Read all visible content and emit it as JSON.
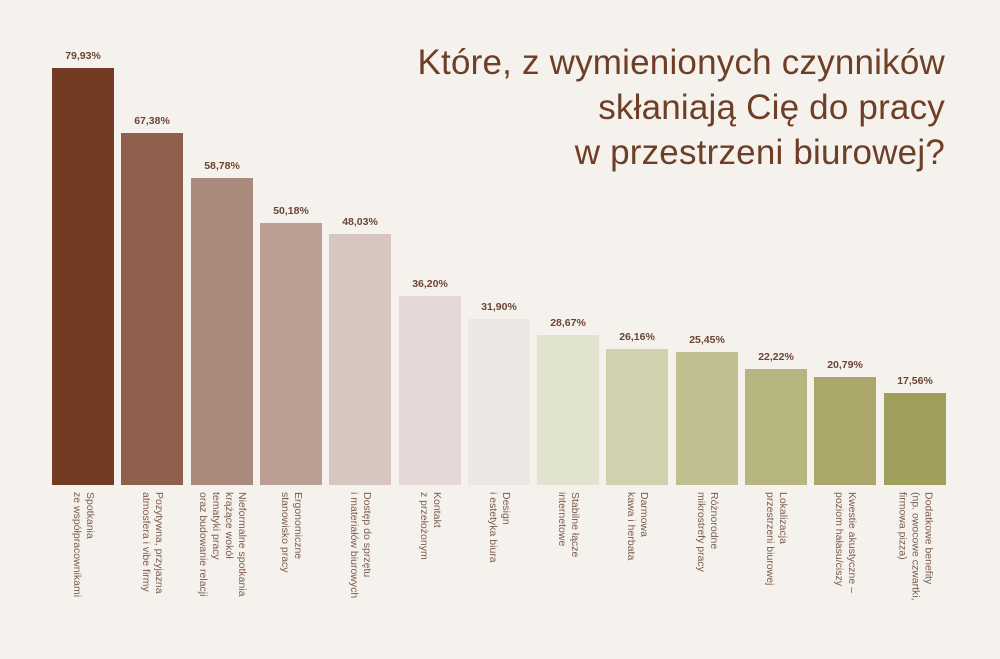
{
  "chart_data": {
    "type": "bar",
    "title": "Które, z wymienionych czynników skłaniają Cię do pracy w przestrzeni biurowej?",
    "title_lines": [
      "Które, z wymienionych czynników",
      "skłaniają Cię do pracy",
      "w przestrzeni biurowej?"
    ],
    "xlabel": "",
    "ylabel": "",
    "ylim": [
      0,
      100
    ],
    "grid": false,
    "legend": null,
    "categories": [
      "Spotkania\nze współpracownikami",
      "Pozytywna, przyjazna\natmosfera i vibe firmy",
      "Nieformalne spotkania\nkrążące wokół\ntematyki pracy\noraz budowanie relacji",
      "Ergonomiczne\nstanowisko pracy",
      "Dostęp do sprzętu\ni materiałów biurowych",
      "Kontakt\nz przełożonym",
      "Design\ni estetyka biura",
      "Stabilne łącze\ninternetowe",
      "Darmowa\nkawa i herbata",
      "Różnorodne\nmikrostrefy pracy",
      "Lokalizacja\nprzestrzeni biurowej",
      "Kwestie akustyczne –\npoziom hałasu/ciszy",
      "Dodatkowe benefity\n(np. owocowe czwartki,\nfirmowa pizza)"
    ],
    "values": [
      79.93,
      67.38,
      58.78,
      50.18,
      48.03,
      36.2,
      31.9,
      28.67,
      26.16,
      25.45,
      22.22,
      20.79,
      17.56
    ],
    "value_labels": [
      "79,93%",
      "67,38%",
      "58,78%",
      "50,18%",
      "48,03%",
      "36,20%",
      "31,90%",
      "28,67%",
      "26,16%",
      "25,45%",
      "22,22%",
      "20,79%",
      "17,56%"
    ],
    "colors": [
      "#733b23",
      "#8f614d",
      "#a98a7c",
      "#bb9f93",
      "#d6c6bf",
      "#e3d8d5",
      "#ece7e2",
      "#e1e3ce",
      "#d0d2ae",
      "#c1be8f",
      "#b6b47f",
      "#aba66a",
      "#a09e5b"
    ]
  },
  "theme": {
    "background": "#f5f2ed",
    "title_color": "#6e3e27",
    "value_label_color": "#6b4434",
    "category_label_color": "#7b5a4a"
  }
}
